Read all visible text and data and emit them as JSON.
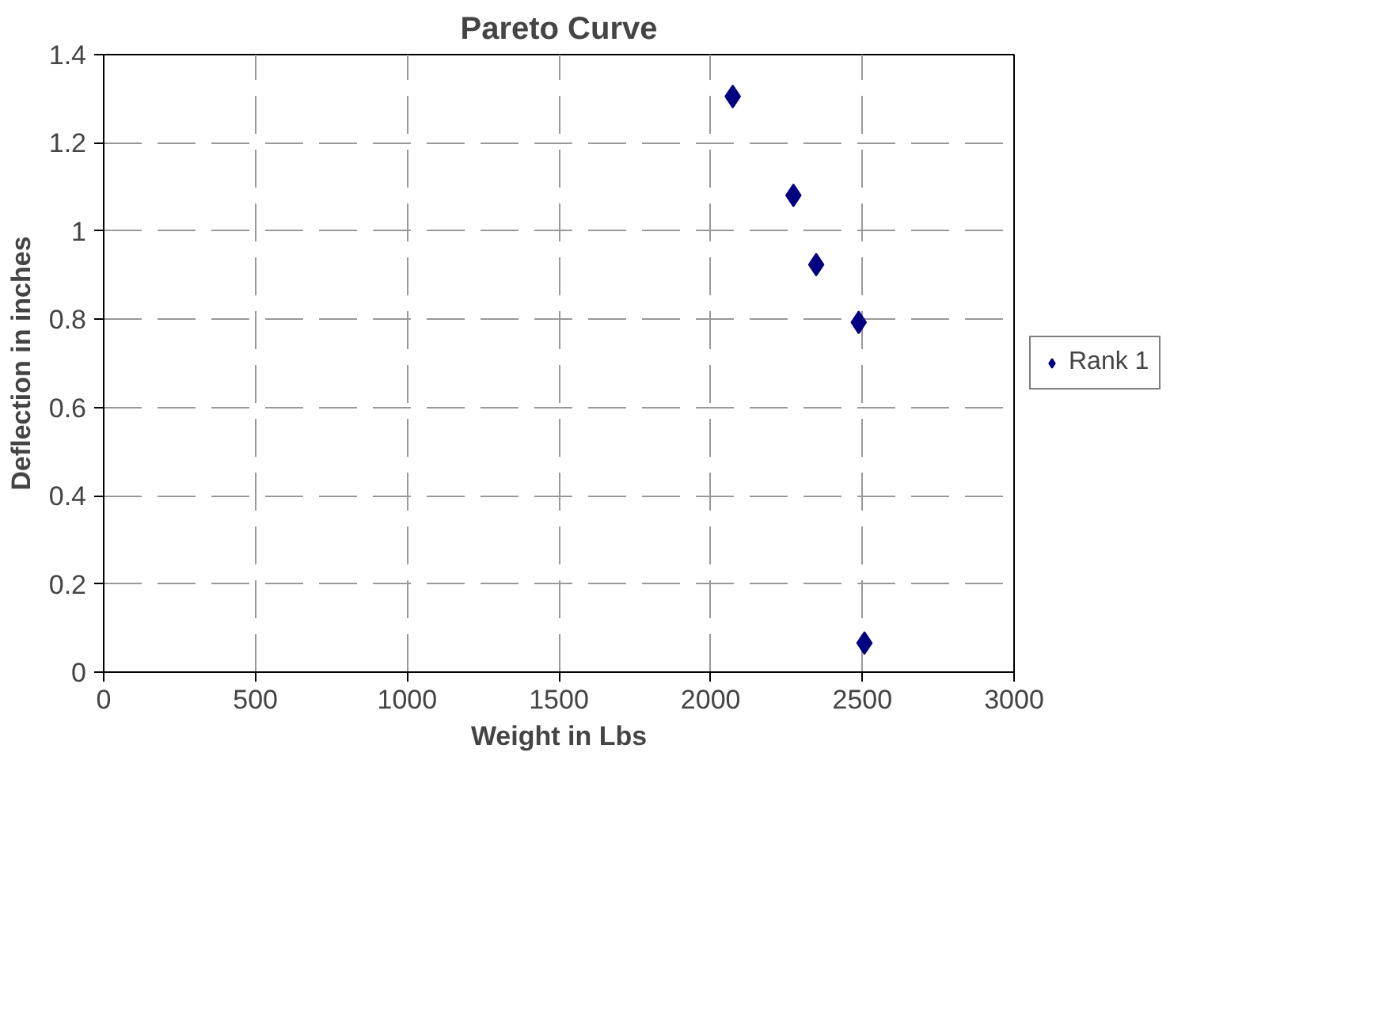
{
  "chart_data": {
    "type": "scatter",
    "title": "Pareto Curve",
    "xlabel": "Weight in Lbs",
    "ylabel": "Deflection in inches",
    "x": [
      2073,
      2273,
      2348,
      2488,
      2507
    ],
    "series": [
      {
        "name": "Rank 1",
        "color": "#000080",
        "values": [
          1.305,
          1.081,
          0.924,
          0.793,
          0.066
        ]
      }
    ],
    "xlim": [
      0,
      3000
    ],
    "xticks": [
      0,
      500,
      1000,
      1500,
      2000,
      2500,
      3000
    ],
    "ylim": [
      0,
      1.4
    ],
    "yticks": [
      0,
      {
        "value": 0.2,
        "label": "0.2"
      },
      {
        "value": 0.4,
        "label": "0.4"
      },
      {
        "value": 0.6,
        "label": "0.6"
      },
      {
        "value": 0.8,
        "label": "0.8"
      },
      1,
      {
        "value": 1.2,
        "label": "1.2"
      },
      {
        "value": 1.4,
        "label": "1.4"
      }
    ],
    "grid": true,
    "legend": "right",
    "marker": "diamond"
  }
}
